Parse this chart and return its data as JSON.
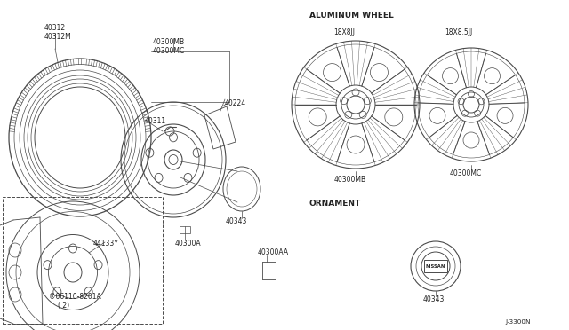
{
  "bg_color": "#ffffff",
  "line_color": "#4a4a4a",
  "text_color": "#222222",
  "fig_width": 6.4,
  "fig_height": 3.72,
  "dpi": 100,
  "parts": {
    "tire_label1": "40312",
    "tire_label2": "40312M",
    "wheel_label1": "40300MB",
    "wheel_label2": "40300MC",
    "valve_label": "40311",
    "bracket_label": "40224",
    "hub_label": "40343",
    "nut_label": "40300A",
    "label_aa": "40300AA",
    "brake_label": "44133Y",
    "bolt_label": "®06110-8201A",
    "bolt_label2": "( 2)",
    "alum_section": "ALUMINUM WHEEL",
    "wheel1_size": "18X8JJ",
    "wheel2_size": "18X8.5JJ",
    "wheel1_part": "40300MB",
    "wheel2_part": "40300MC",
    "ornament_section": "ORNAMENT",
    "ornament_part": "40343",
    "diagram_code": "J-3300N"
  }
}
